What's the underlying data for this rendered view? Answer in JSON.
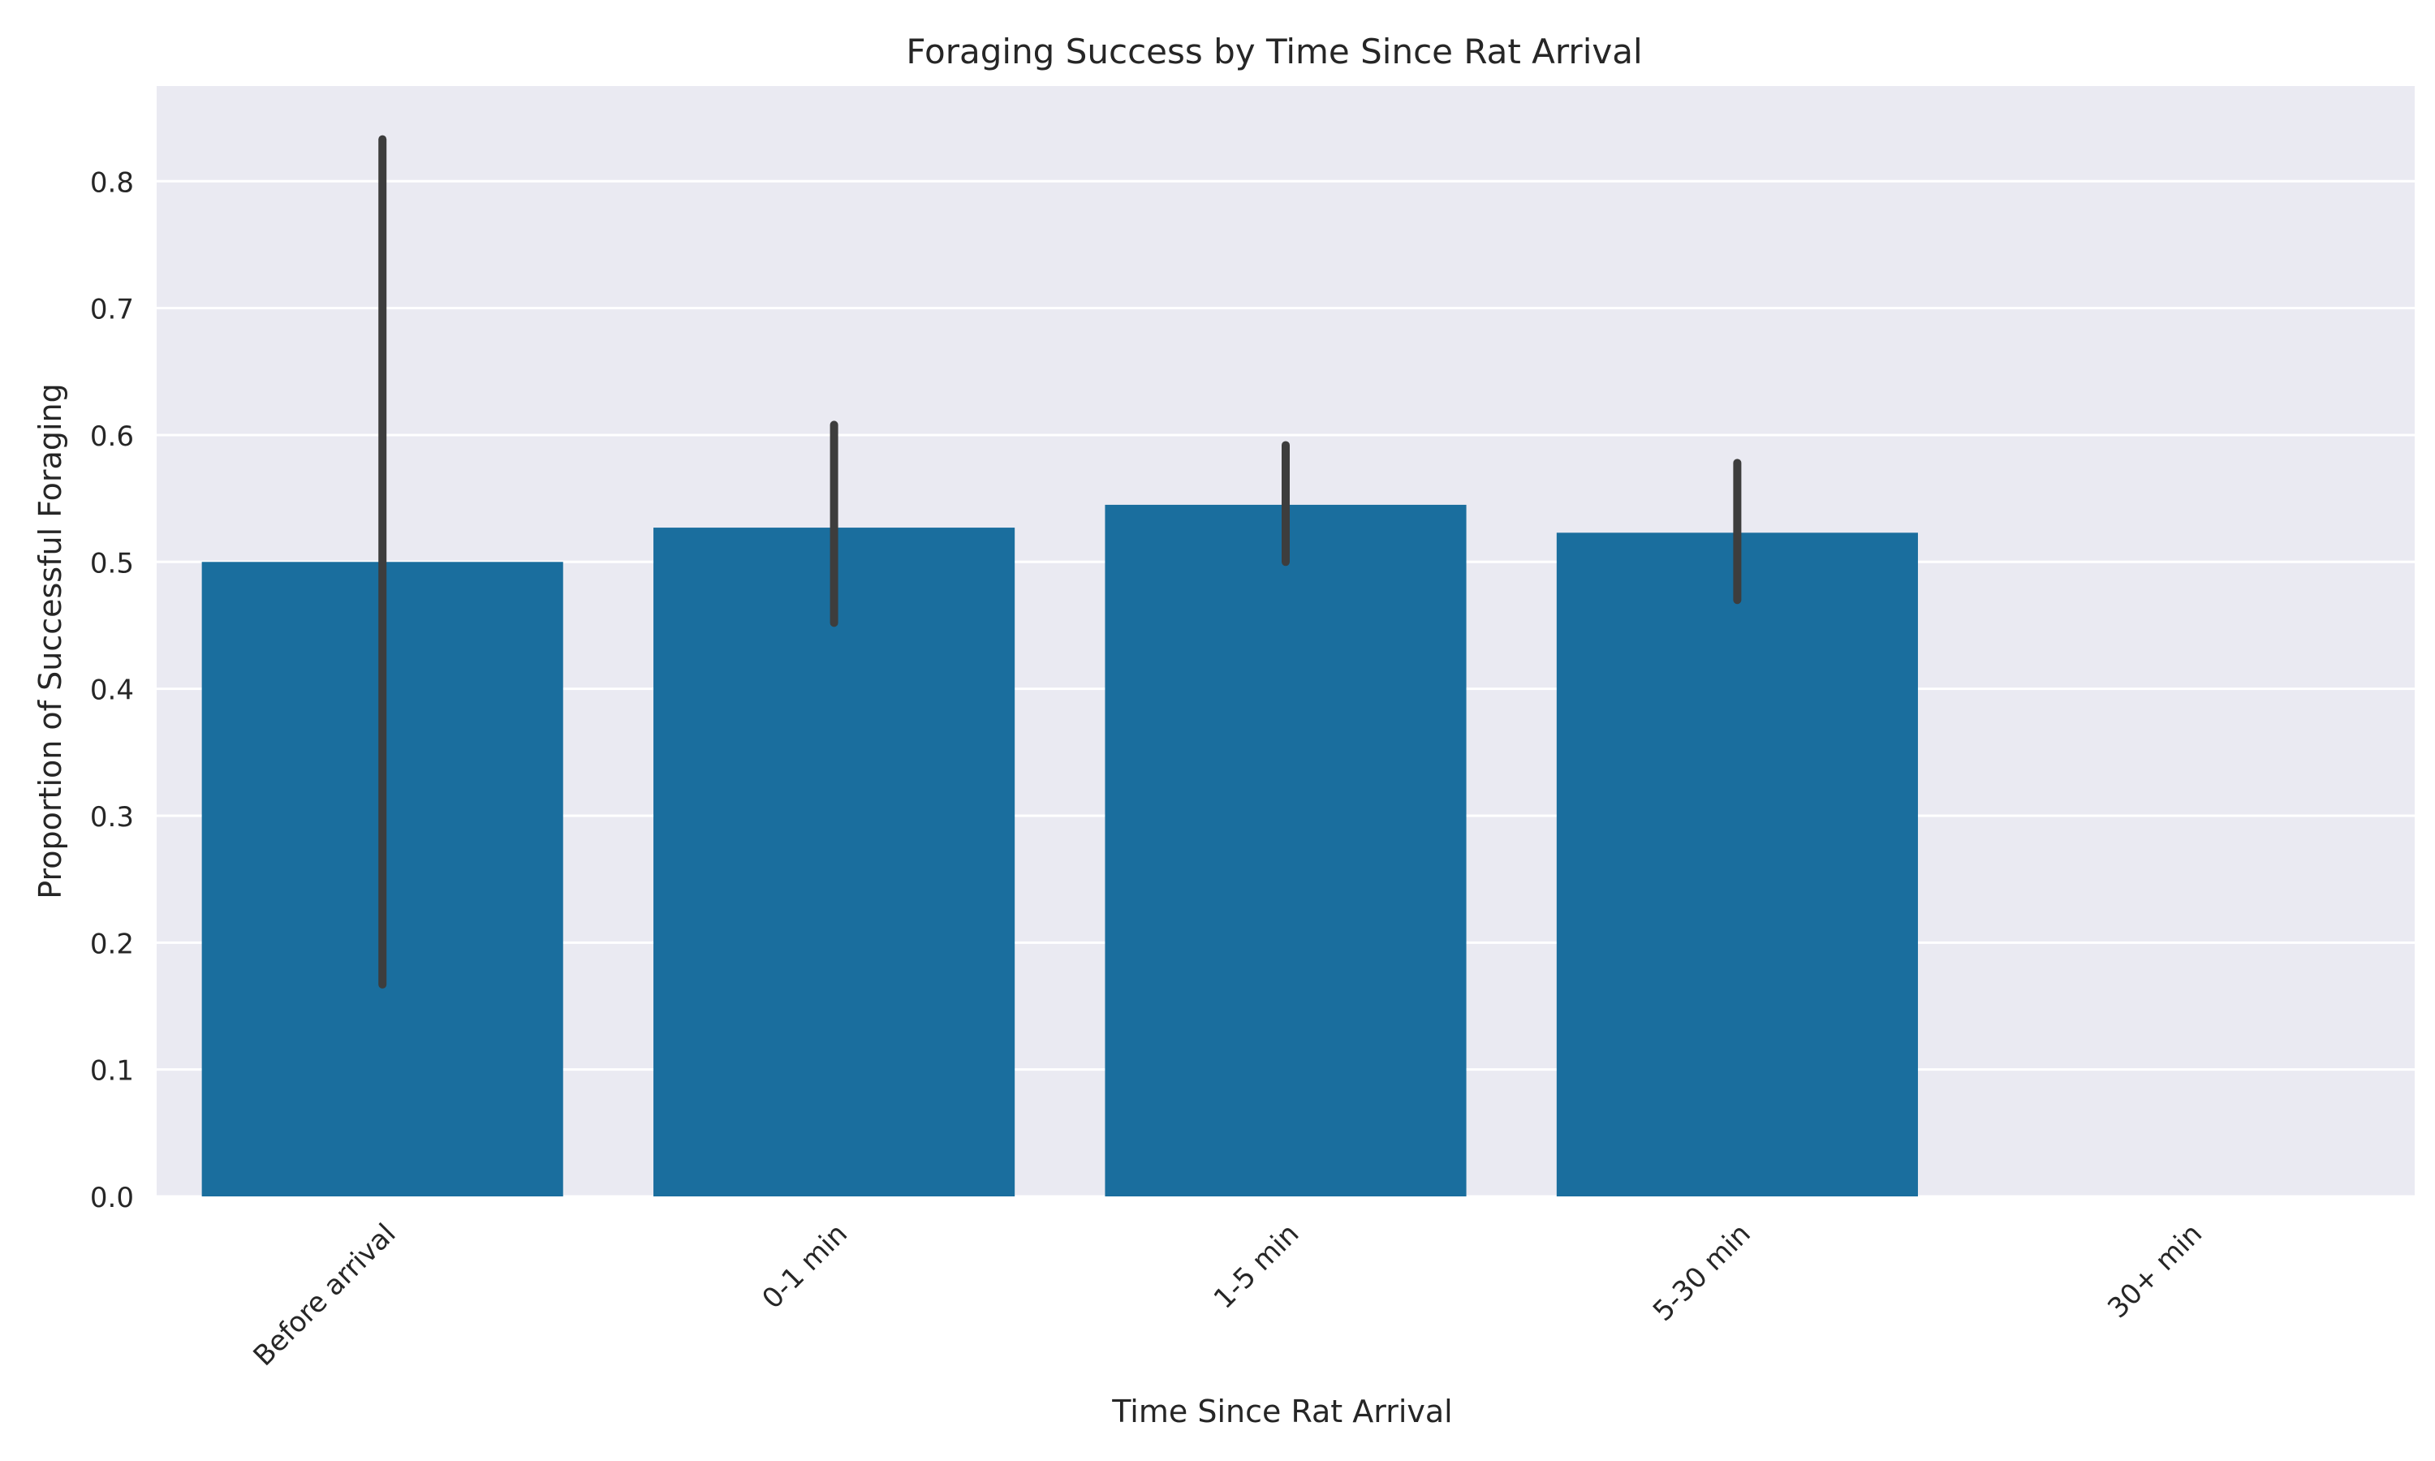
{
  "chart_data": {
    "type": "bar",
    "title": "Foraging Success by Time Since Rat Arrival",
    "xlabel": "Time Since Rat Arrival",
    "ylabel": "Proportion of Successful Foraging",
    "categories": [
      "Before arrival",
      "0-1 min",
      "1-5 min",
      "5-30 min",
      "30+ min"
    ],
    "values": [
      0.5,
      0.527,
      0.545,
      0.523,
      null
    ],
    "error_low": [
      0.167,
      0.452,
      0.5,
      0.47,
      null
    ],
    "error_high": [
      0.833,
      0.608,
      0.592,
      0.578,
      null
    ],
    "ylim": [
      0,
      0.875
    ],
    "yticks": [
      0.0,
      0.1,
      0.2,
      0.3,
      0.4,
      0.5,
      0.6,
      0.7,
      0.8
    ],
    "ytick_labels": [
      "0.0",
      "0.1",
      "0.2",
      "0.3",
      "0.4",
      "0.5",
      "0.6",
      "0.7",
      "0.8"
    ],
    "grid": true,
    "colors": {
      "bar": "#1a6e9e",
      "errorbar": "#3d3d3d",
      "plot_background": "#eaeaf2",
      "grid": "#ffffff",
      "text": "#262626"
    }
  }
}
